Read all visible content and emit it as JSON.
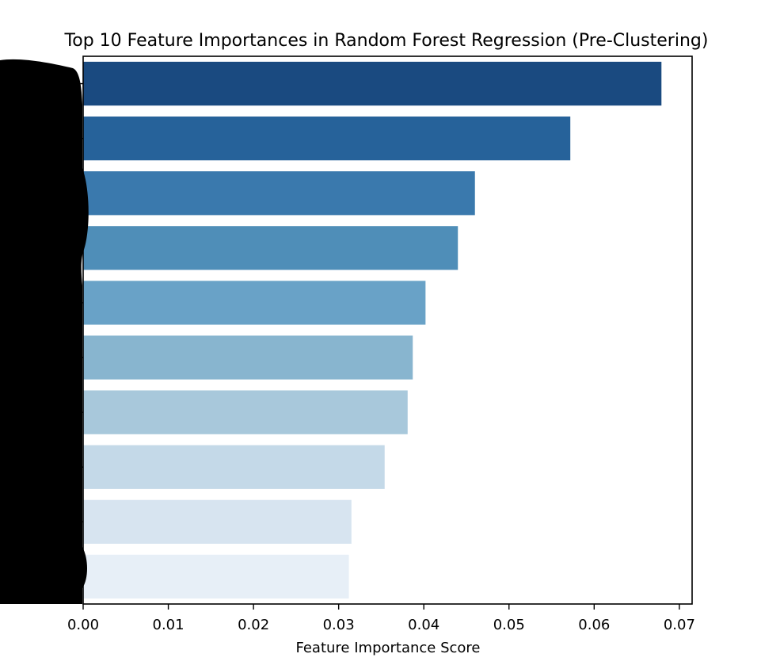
{
  "chart_data": {
    "type": "bar",
    "orientation": "horizontal",
    "title": "Top 10 Feature Importances in Random Forest Regression (Pre-Clustering)",
    "xlabel": "Feature Importance Score",
    "ylabel": "",
    "xlim": [
      0,
      0.0715
    ],
    "x_ticks": [
      0.0,
      0.01,
      0.02,
      0.03,
      0.04,
      0.05,
      0.06,
      0.07
    ],
    "x_tick_labels": [
      "0.00",
      "0.01",
      "0.02",
      "0.03",
      "0.04",
      "0.05",
      "0.06",
      "0.07"
    ],
    "categories": [
      "",
      "",
      "",
      "",
      "",
      "",
      "",
      "",
      "",
      ""
    ],
    "values": [
      0.0679,
      0.0572,
      0.046,
      0.044,
      0.0402,
      0.0387,
      0.0381,
      0.0354,
      0.0315,
      0.0312
    ],
    "colors": [
      "#1a4a80",
      "#26629a",
      "#3a79ad",
      "#4f8eb8",
      "#69a2c7",
      "#88b5cf",
      "#a8c8db",
      "#c4d9e8",
      "#d7e4f0",
      "#e7eff7"
    ],
    "grid": false,
    "legend": "none",
    "redaction": {
      "y_tick_labels": "obscured",
      "color": "#000000"
    }
  }
}
